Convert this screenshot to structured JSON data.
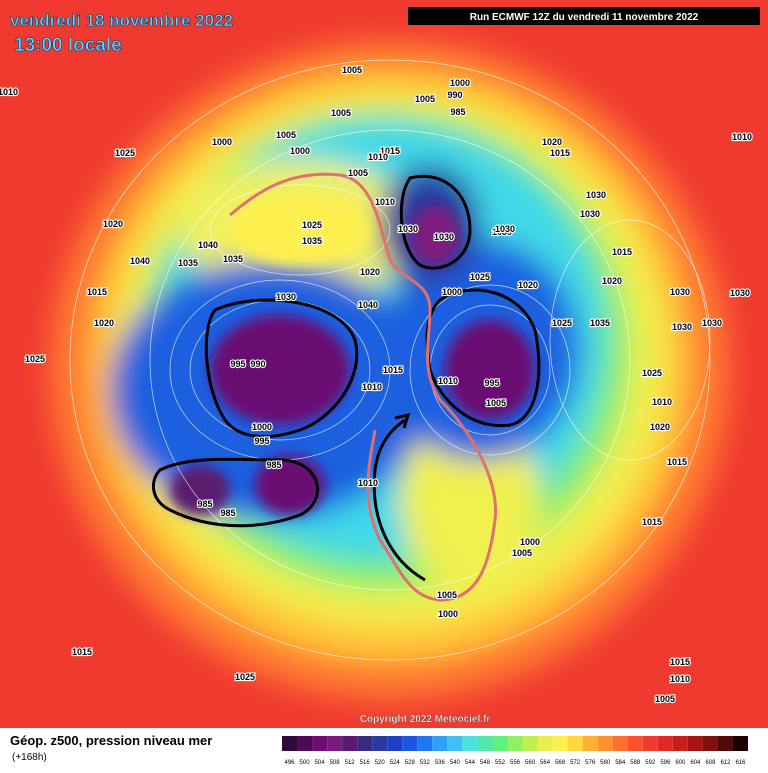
{
  "header": {
    "date": "vendredi 18 novembre 2022",
    "time": "13:00 locale",
    "run": "Run ECMWF 12Z du vendredi 11 novembre 2022"
  },
  "map": {
    "pressure_labels": [
      "1010",
      "1005",
      "1000",
      "990",
      "985",
      "1005",
      "1005",
      "1000",
      "1005",
      "1000",
      "1015",
      "1005",
      "1020",
      "1015",
      "1010",
      "1010",
      "1025",
      "1030",
      "1025",
      "1035",
      "1040",
      "1035",
      "1035",
      "1030",
      "1020",
      "1015",
      "1020",
      "1025",
      "1040",
      "1040",
      "1030",
      "1020",
      "1030",
      "1030",
      "1025",
      "1035",
      "1030",
      "1030",
      "1025",
      "995",
      "990",
      "1000",
      "995",
      "985",
      "985",
      "985",
      "1020",
      "1015",
      "1010",
      "1000",
      "1005",
      "995",
      "1010",
      "1030",
      "1030",
      "1030",
      "1030",
      "1020",
      "1025",
      "1020",
      "1015",
      "1010",
      "1015",
      "1005",
      "1000",
      "1000",
      "1010",
      "1005",
      "1015",
      "1025",
      "1015",
      "1015",
      "1010",
      "1005",
      "1010"
    ]
  },
  "copyright": "Copyright 2022 Meteociel.fr",
  "legend": {
    "title": "Géop. z500, pression niveau mer",
    "lead": "(+168h)",
    "scale": [
      {
        "label": "496",
        "color": "#2d0a3a"
      },
      {
        "label": "500",
        "color": "#4b0b57"
      },
      {
        "label": "504",
        "color": "#6a0f72"
      },
      {
        "label": "508",
        "color": "#7d1a7f"
      },
      {
        "label": "512",
        "color": "#5a1a6e"
      },
      {
        "label": "516",
        "color": "#3a2a80"
      },
      {
        "label": "520",
        "color": "#2a3aa0"
      },
      {
        "label": "524",
        "color": "#1f3ec8"
      },
      {
        "label": "528",
        "color": "#1c55e0"
      },
      {
        "label": "532",
        "color": "#1e78f0"
      },
      {
        "label": "536",
        "color": "#30a0f5"
      },
      {
        "label": "540",
        "color": "#40c0f0"
      },
      {
        "label": "544",
        "color": "#50e0e0"
      },
      {
        "label": "548",
        "color": "#50e8b0"
      },
      {
        "label": "552",
        "color": "#60f080"
      },
      {
        "label": "556",
        "color": "#90f060"
      },
      {
        "label": "560",
        "color": "#c0f050"
      },
      {
        "label": "564",
        "color": "#e8f050"
      },
      {
        "label": "568",
        "color": "#fff050"
      },
      {
        "label": "572",
        "color": "#ffd840"
      },
      {
        "label": "576",
        "color": "#ffb030"
      },
      {
        "label": "580",
        "color": "#ff9030"
      },
      {
        "label": "584",
        "color": "#ff7030"
      },
      {
        "label": "588",
        "color": "#ff5030"
      },
      {
        "label": "592",
        "color": "#f03c30"
      },
      {
        "label": "596",
        "color": "#e02828"
      },
      {
        "label": "600",
        "color": "#c81e1e"
      },
      {
        "label": "604",
        "color": "#a81414"
      },
      {
        "label": "608",
        "color": "#801010"
      },
      {
        "label": "612",
        "color": "#500808"
      },
      {
        "label": "616",
        "color": "#1a0000"
      }
    ]
  }
}
